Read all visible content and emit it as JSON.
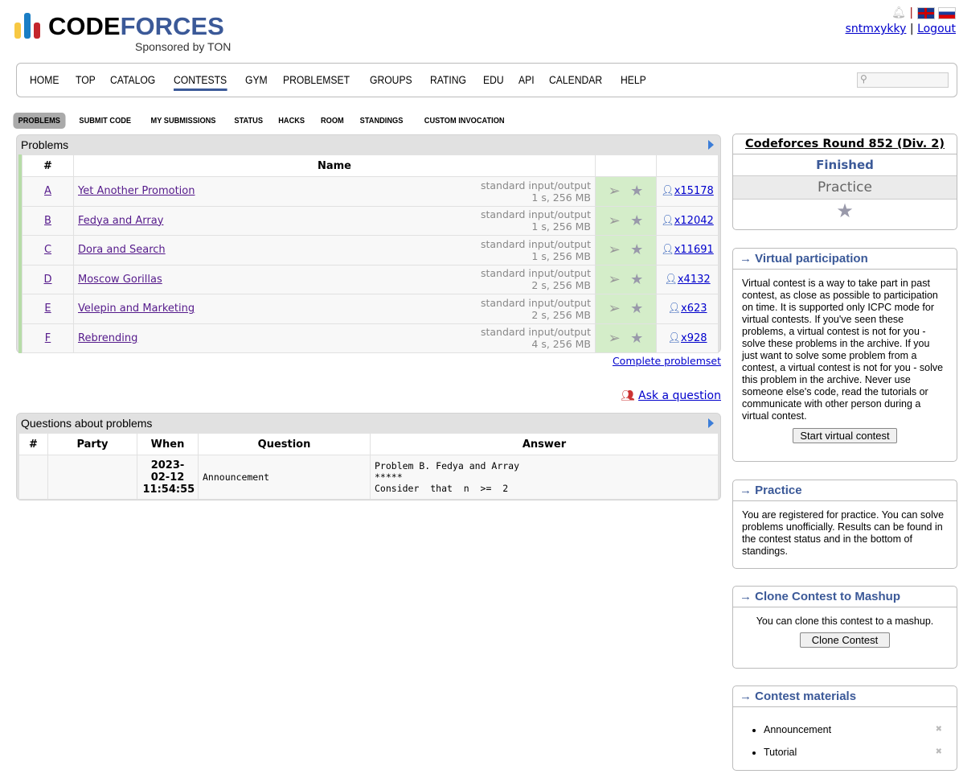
{
  "header": {
    "logo_text_a": "CODE",
    "logo_text_b": "FORCES",
    "sponsor": "Sponsored by TON",
    "username": "sntmxykky",
    "logout": "Logout",
    "separator": "|"
  },
  "menu": [
    "HOME",
    "TOP",
    "CATALOG",
    "CONTESTS",
    "GYM",
    "PROBLEMSET",
    "GROUPS",
    "RATING",
    "EDU",
    "API",
    "CALENDAR",
    "HELP"
  ],
  "menu_active": "CONTESTS",
  "subnav": [
    "PROBLEMS",
    "SUBMIT CODE",
    "MY SUBMISSIONS",
    "STATUS",
    "HACKS",
    "ROOM",
    "STANDINGS",
    "CUSTOM INVOCATION"
  ],
  "problems": {
    "caption": "Problems",
    "col_num": "#",
    "col_name": "Name",
    "rows": [
      {
        "id": "A",
        "name": "Yet Another Promotion",
        "io": "standard input/output",
        "limits": "1 s, 256 MB",
        "solved": "x15178"
      },
      {
        "id": "B",
        "name": "Fedya and Array",
        "io": "standard input/output",
        "limits": "1 s, 256 MB",
        "solved": "x12042"
      },
      {
        "id": "C",
        "name": "Dora and Search",
        "io": "standard input/output",
        "limits": "1 s, 256 MB",
        "solved": "x11691"
      },
      {
        "id": "D",
        "name": "Moscow Gorillas",
        "io": "standard input/output",
        "limits": "2 s, 256 MB",
        "solved": "x4132"
      },
      {
        "id": "E",
        "name": "Velepin and Marketing",
        "io": "standard input/output",
        "limits": "2 s, 256 MB",
        "solved": "x623"
      },
      {
        "id": "F",
        "name": "Rebrending",
        "io": "standard input/output",
        "limits": "4 s, 256 MB",
        "solved": "x928"
      }
    ],
    "complete_link": "Complete problemset"
  },
  "ask": "Ask a question",
  "questions": {
    "caption": "Questions about problems",
    "cols": [
      "#",
      "Party",
      "When",
      "Question",
      "Answer"
    ],
    "rows": [
      {
        "num": "",
        "party": "",
        "when": "2023-02-12 11:54:55",
        "when_l1": "2023-02-",
        "when_l2": "12",
        "when_l3": "11:54:55",
        "question": "Announcement",
        "answer_l1": "Problem B. Fedya and Array",
        "answer_l2": "*****",
        "answer_l3": "Consider  that  n  >=  2"
      }
    ]
  },
  "sidebar": {
    "contest": {
      "title": "Codeforces Round 852 (Div. 2)",
      "status": "Finished",
      "mode": "Practice"
    },
    "virtual": {
      "title": "→ Virtual participation",
      "text": "Virtual contest is a way to take part in past contest, as close as possible to participation on time. It is supported only ICPC mode for virtual contests. If you've seen these problems, a virtual contest is not for you - solve these problems in the archive. If you just want to solve some problem from a contest, a virtual contest is not for you - solve this problem in the archive. Never use someone else's code, read the tutorials or communicate with other person during a virtual contest.",
      "button": "Start virtual contest"
    },
    "practice": {
      "title": "→ Practice",
      "text": "You are registered for practice. You can solve problems unofficially. Results can be found in the contest status and in the bottom of standings."
    },
    "clone": {
      "title": "→ Clone Contest to Mashup",
      "text": "You can clone this contest to a mashup.",
      "button": "Clone Contest"
    },
    "materials": {
      "title": "→ Contest materials",
      "items": [
        "Announcement",
        "Tutorial"
      ]
    }
  },
  "colors": {
    "brand": "#3b5998",
    "accepted_bg": "#d4edc9",
    "link": "#0000cc"
  }
}
